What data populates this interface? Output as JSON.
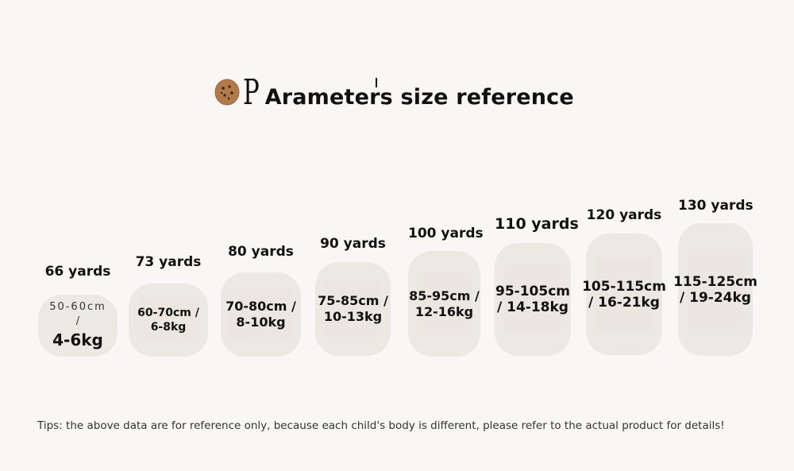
{
  "title": {
    "p": "P",
    "text": "Arameters size reference"
  },
  "sizes": [
    {
      "yards": "66 yards",
      "line1": "50-60cm",
      "slash": "/",
      "line2": "4-6kg"
    },
    {
      "yards": "73 yards",
      "line1": "60-70cm /",
      "line2": "6-8kg"
    },
    {
      "yards": "80 yards",
      "line1": "70-80cm /",
      "line2": "8-10kg"
    },
    {
      "yards": "90 yards",
      "line1": "75-85cm /",
      "line2": "10-13kg"
    },
    {
      "yards": "100 yards",
      "line1": "85-95cm /",
      "line2": "12-16kg"
    },
    {
      "yards": "110 yards",
      "line1": "95-105cm",
      "line2": "/ 14-18kg"
    },
    {
      "yards": "120 yards",
      "line1": "105-115cm",
      "line2": "/ 16-21kg"
    },
    {
      "yards": "130 yards",
      "line1": "115-125cm",
      "line2": "/ 19-24kg"
    }
  ],
  "tips": "Tips: the above data are for reference only, because each child's body is different, please refer to the actual product for details!",
  "colors": {
    "background": "#f8f7f6",
    "box": "#ece8e2",
    "cookie": "#b07a4a"
  },
  "icons": {
    "title_icon": "cookie-icon"
  }
}
